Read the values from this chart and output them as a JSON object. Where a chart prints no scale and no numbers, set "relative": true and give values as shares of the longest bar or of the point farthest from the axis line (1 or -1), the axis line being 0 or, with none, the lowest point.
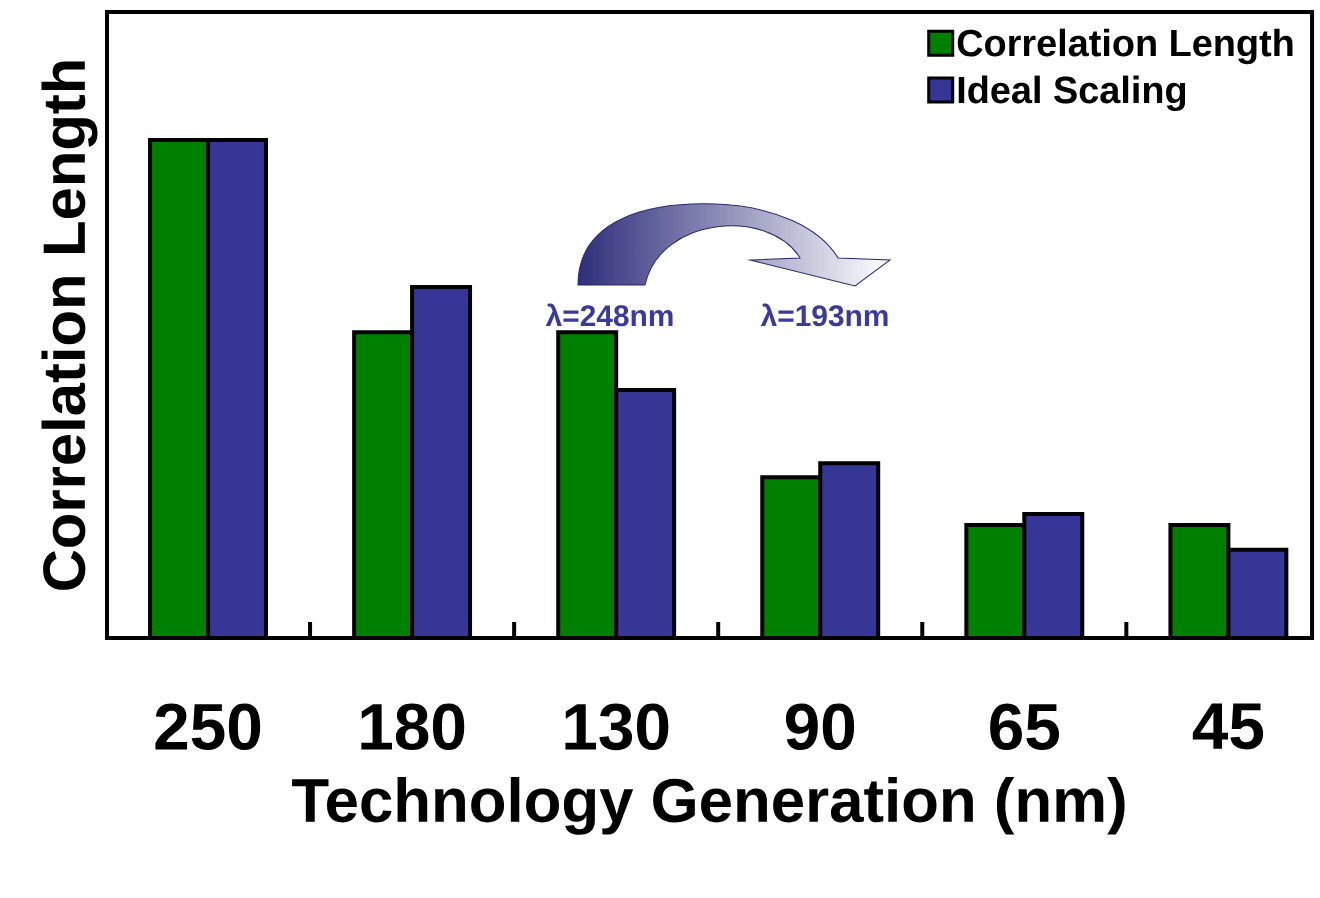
{
  "chart_data": {
    "type": "bar",
    "xlabel": "Technology Generation (nm)",
    "ylabel": "Correlation Length",
    "categories": [
      "250",
      "180",
      "130",
      "90",
      "65",
      "45"
    ],
    "series": [
      {
        "name": "Correlation Length",
        "color": "#008000",
        "values": [
          1,
          0.614,
          0.614,
          0.323,
          0.227,
          0.227
        ]
      },
      {
        "name": "Ideal Scaling",
        "color": "#363696",
        "values": [
          1,
          0.705,
          0.498,
          0.351,
          0.249,
          0.177
        ]
      }
    ],
    "relative": true,
    "legend": "top right",
    "annotations": [
      "λ=248nm",
      "λ=193nm"
    ]
  }
}
